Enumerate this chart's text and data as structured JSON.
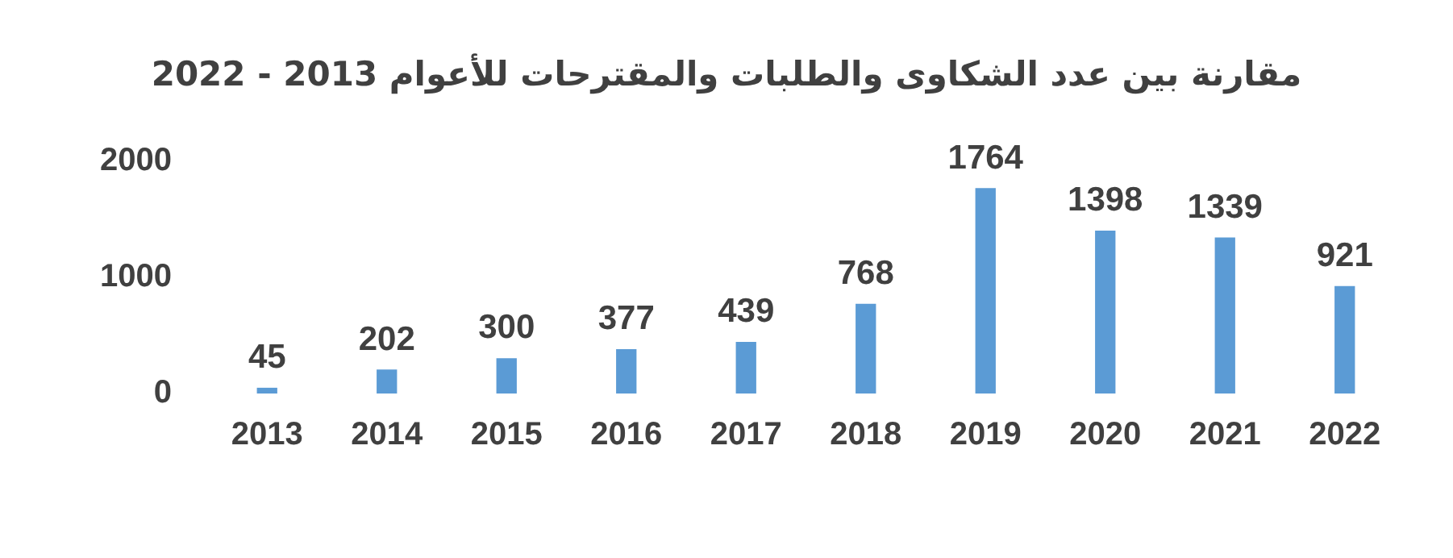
{
  "chart_data": {
    "type": "bar",
    "title": "مقارنة بين عدد الشكاوى والطلبات والمقترحات للأعوام 2013 - 2022",
    "categories": [
      "2013",
      "2014",
      "2015",
      "2016",
      "2017",
      "2018",
      "2019",
      "2020",
      "2021",
      "2022"
    ],
    "values": [
      45,
      202,
      300,
      377,
      439,
      768,
      1764,
      1398,
      1339,
      921
    ],
    "color": "#5b9bd5",
    "ylim": [
      0,
      2000
    ],
    "yticks": [
      0,
      1000,
      2000
    ],
    "grid": false,
    "data_labels": true,
    "legend": false
  }
}
